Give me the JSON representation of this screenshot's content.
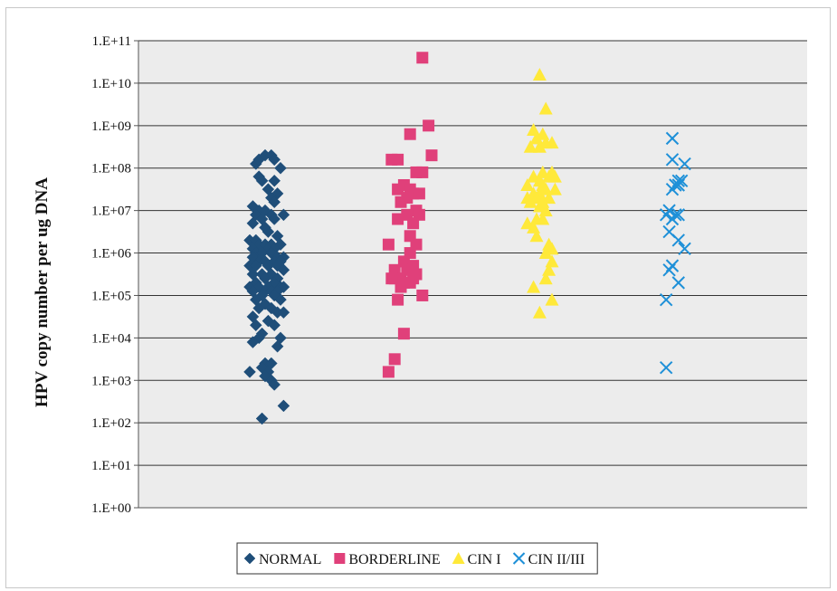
{
  "chart_data": {
    "type": "scatter",
    "title": "",
    "xlabel": "",
    "ylabel": "HPV copy number per ug DNA",
    "y_scale": "log",
    "ylim": [
      0,
      11
    ],
    "y_tick_labels": [
      "1.E+00",
      "1.E+01",
      "1.E+02",
      "1.E+03",
      "1.E+04",
      "1.E+05",
      "1.E+06",
      "1.E+07",
      "1.E+08",
      "1.E+09",
      "1.E+10",
      "1.E+11"
    ],
    "grid": true,
    "legend_position": "bottom",
    "categories": [
      "NORMAL",
      "BORDERLINE",
      "CIN I",
      "CIN II/III"
    ],
    "series": [
      {
        "name": "NORMAL",
        "marker": "diamond",
        "color": "#1f4e79",
        "values": [
          [
            -0.3,
            8.1
          ],
          [
            -0.2,
            8.2
          ],
          [
            0.0,
            8.3
          ],
          [
            0.2,
            8.3
          ],
          [
            0.3,
            8.2
          ],
          [
            0.5,
            8.0
          ],
          [
            -0.2,
            7.8
          ],
          [
            -0.1,
            7.7
          ],
          [
            0.3,
            7.7
          ],
          [
            0.1,
            7.5
          ],
          [
            0.4,
            7.4
          ],
          [
            0.2,
            7.3
          ],
          [
            0.3,
            7.2
          ],
          [
            -0.4,
            7.1
          ],
          [
            -0.2,
            7.0
          ],
          [
            0.0,
            7.0
          ],
          [
            0.2,
            6.9
          ],
          [
            0.6,
            6.9
          ],
          [
            -0.3,
            6.9
          ],
          [
            -0.1,
            6.8
          ],
          [
            0.3,
            6.8
          ],
          [
            -0.4,
            6.7
          ],
          [
            0.0,
            6.6
          ],
          [
            0.1,
            6.5
          ],
          [
            0.4,
            6.4
          ],
          [
            -0.5,
            6.3
          ],
          [
            -0.3,
            6.3
          ],
          [
            -0.2,
            6.2
          ],
          [
            0.0,
            6.2
          ],
          [
            0.2,
            6.2
          ],
          [
            0.5,
            6.2
          ],
          [
            -0.4,
            6.1
          ],
          [
            0.1,
            6.1
          ],
          [
            0.3,
            6.1
          ],
          [
            -0.3,
            6.0
          ],
          [
            -0.1,
            6.0
          ],
          [
            0.2,
            6.0
          ],
          [
            0.4,
            5.9
          ],
          [
            0.6,
            5.9
          ],
          [
            -0.4,
            5.9
          ],
          [
            -0.2,
            5.8
          ],
          [
            0.0,
            5.8
          ],
          [
            0.3,
            5.8
          ],
          [
            0.5,
            5.8
          ],
          [
            -0.5,
            5.7
          ],
          [
            -0.3,
            5.7
          ],
          [
            0.1,
            5.7
          ],
          [
            0.4,
            5.7
          ],
          [
            0.6,
            5.6
          ],
          [
            -0.4,
            5.5
          ],
          [
            -0.1,
            5.5
          ],
          [
            0.2,
            5.5
          ],
          [
            0.0,
            5.4
          ],
          [
            0.4,
            5.4
          ],
          [
            -0.3,
            5.3
          ],
          [
            0.3,
            5.3
          ],
          [
            -0.5,
            5.2
          ],
          [
            -0.2,
            5.2
          ],
          [
            0.1,
            5.2
          ],
          [
            0.5,
            5.2
          ],
          [
            0.6,
            5.2
          ],
          [
            -0.4,
            5.1
          ],
          [
            0.0,
            5.1
          ],
          [
            0.2,
            5.1
          ],
          [
            0.4,
            5.1
          ],
          [
            -0.1,
            5.0
          ],
          [
            0.3,
            5.0
          ],
          [
            -0.3,
            4.9
          ],
          [
            0.5,
            4.9
          ],
          [
            0.0,
            4.8
          ],
          [
            -0.2,
            4.7
          ],
          [
            0.2,
            4.7
          ],
          [
            0.4,
            4.6
          ],
          [
            0.6,
            4.6
          ],
          [
            -0.4,
            4.5
          ],
          [
            0.1,
            4.4
          ],
          [
            -0.3,
            4.3
          ],
          [
            0.3,
            4.3
          ],
          [
            -0.1,
            4.1
          ],
          [
            -0.2,
            4.0
          ],
          [
            0.5,
            4.0
          ],
          [
            0.4,
            3.8
          ],
          [
            -0.4,
            3.9
          ],
          [
            0.0,
            3.4
          ],
          [
            0.2,
            3.4
          ],
          [
            -0.5,
            3.2
          ],
          [
            -0.1,
            3.3
          ],
          [
            0.1,
            3.2
          ],
          [
            0.0,
            3.1
          ],
          [
            0.2,
            3.0
          ],
          [
            0.3,
            2.9
          ],
          [
            0.6,
            2.4
          ],
          [
            -0.1,
            2.1
          ]
        ]
      },
      {
        "name": "BORDERLINE",
        "marker": "square",
        "color": "#e0407a",
        "values": [
          [
            0.7,
            10.6
          ],
          [
            0.9,
            9.0
          ],
          [
            0.3,
            8.8
          ],
          [
            1.0,
            8.3
          ],
          [
            -0.3,
            8.2
          ],
          [
            -0.1,
            8.2
          ],
          [
            0.5,
            7.9
          ],
          [
            0.7,
            7.9
          ],
          [
            0.1,
            7.6
          ],
          [
            0.3,
            7.5
          ],
          [
            -0.1,
            7.5
          ],
          [
            0.4,
            7.4
          ],
          [
            0.6,
            7.4
          ],
          [
            0.2,
            7.3
          ],
          [
            0.0,
            7.2
          ],
          [
            0.5,
            7.0
          ],
          [
            0.2,
            6.9
          ],
          [
            0.6,
            6.9
          ],
          [
            -0.1,
            6.8
          ],
          [
            0.4,
            6.7
          ],
          [
            0.3,
            6.4
          ],
          [
            0.5,
            6.2
          ],
          [
            -0.4,
            6.2
          ],
          [
            0.3,
            6.0
          ],
          [
            0.1,
            5.8
          ],
          [
            0.4,
            5.7
          ],
          [
            -0.2,
            5.6
          ],
          [
            0.2,
            5.6
          ],
          [
            0.5,
            5.5
          ],
          [
            -0.2,
            5.4
          ],
          [
            0.0,
            5.4
          ],
          [
            0.4,
            5.4
          ],
          [
            -0.3,
            5.4
          ],
          [
            0.1,
            5.3
          ],
          [
            0.3,
            5.3
          ],
          [
            0.0,
            5.2
          ],
          [
            0.7,
            5.0
          ],
          [
            -0.1,
            4.9
          ],
          [
            0.1,
            4.1
          ],
          [
            -0.2,
            3.5
          ],
          [
            -0.4,
            3.2
          ]
        ]
      },
      {
        "name": "CIN I",
        "marker": "triangle",
        "color": "#ffe93a",
        "values": [
          [
            0.1,
            10.2
          ],
          [
            0.3,
            9.4
          ],
          [
            -0.1,
            8.9
          ],
          [
            0.0,
            8.7
          ],
          [
            0.2,
            8.8
          ],
          [
            0.3,
            8.6
          ],
          [
            0.5,
            8.6
          ],
          [
            0.1,
            8.5
          ],
          [
            -0.2,
            8.5
          ],
          [
            0.2,
            7.9
          ],
          [
            0.5,
            7.9
          ],
          [
            0.4,
            7.8
          ],
          [
            -0.1,
            7.8
          ],
          [
            0.6,
            7.8
          ],
          [
            0.1,
            7.7
          ],
          [
            -0.3,
            7.6
          ],
          [
            0.2,
            7.6
          ],
          [
            0.3,
            7.5
          ],
          [
            0.6,
            7.5
          ],
          [
            -0.1,
            7.4
          ],
          [
            0.1,
            7.4
          ],
          [
            -0.3,
            7.3
          ],
          [
            0.0,
            7.3
          ],
          [
            0.4,
            7.3
          ],
          [
            -0.2,
            7.2
          ],
          [
            0.2,
            7.2
          ],
          [
            0.1,
            7.1
          ],
          [
            0.3,
            7.0
          ],
          [
            0.0,
            6.8
          ],
          [
            0.2,
            6.8
          ],
          [
            -0.3,
            6.7
          ],
          [
            -0.1,
            6.6
          ],
          [
            0.0,
            6.4
          ],
          [
            0.4,
            6.2
          ],
          [
            0.5,
            6.1
          ],
          [
            0.3,
            6.0
          ],
          [
            0.5,
            5.8
          ],
          [
            0.4,
            5.6
          ],
          [
            0.3,
            5.4
          ],
          [
            -0.1,
            5.2
          ],
          [
            0.5,
            4.9
          ],
          [
            0.1,
            4.6
          ]
        ]
      },
      {
        "name": "CIN II/III",
        "marker": "x",
        "color": "#1e90d8",
        "values": [
          [
            0.0,
            8.7
          ],
          [
            0.0,
            8.2
          ],
          [
            0.4,
            8.1
          ],
          [
            0.3,
            7.7
          ],
          [
            0.2,
            7.7
          ],
          [
            0.1,
            7.6
          ],
          [
            0.2,
            7.6
          ],
          [
            0.0,
            7.5
          ],
          [
            -0.1,
            7.0
          ],
          [
            0.1,
            6.9
          ],
          [
            -0.2,
            6.9
          ],
          [
            0.2,
            6.9
          ],
          [
            0.0,
            6.8
          ],
          [
            -0.1,
            6.5
          ],
          [
            0.2,
            6.3
          ],
          [
            0.4,
            6.1
          ],
          [
            0.0,
            5.7
          ],
          [
            -0.1,
            5.6
          ],
          [
            0.2,
            5.3
          ],
          [
            -0.2,
            4.9
          ],
          [
            -0.2,
            3.3
          ]
        ]
      }
    ]
  }
}
